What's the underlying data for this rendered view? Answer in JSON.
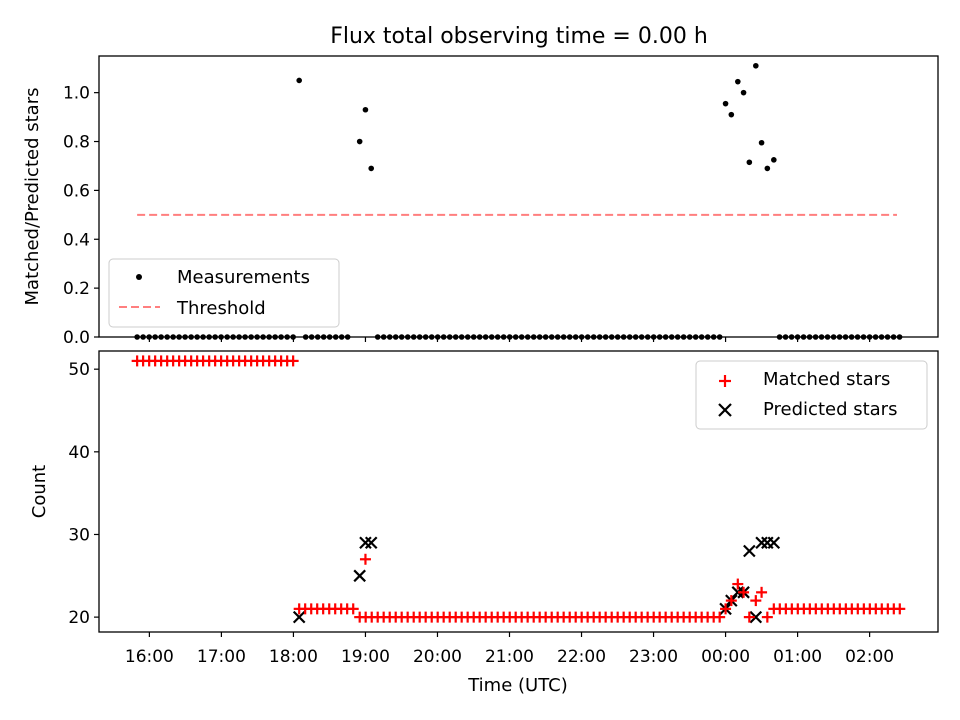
{
  "title": "Flux total observing time = 0.00 h",
  "xlabel": "Time (UTC)",
  "x_tick_labels": [
    "16:00",
    "17:00",
    "18:00",
    "19:00",
    "20:00",
    "21:00",
    "22:00",
    "23:00",
    "00:00",
    "01:00",
    "02:00"
  ],
  "chart_data": [
    {
      "type": "scatter",
      "ylabel": "Matched/Predicted stars",
      "ylim": [
        0,
        1.15
      ],
      "y_ticks": [
        0.0,
        0.2,
        0.4,
        0.6,
        0.8,
        1.0
      ],
      "y_tick_labels": [
        "0.0",
        "0.2",
        "0.4",
        "0.6",
        "0.8",
        "1.0"
      ],
      "legend": {
        "position": "lower-left",
        "entries": [
          {
            "label": "Measurements",
            "style": "dot"
          },
          {
            "label": "Threshold",
            "style": "dashed"
          }
        ]
      },
      "colors": {
        "measurements": "#000000",
        "threshold": "#ff7f7f"
      },
      "threshold": {
        "value": 0.5,
        "x_start": 15.83,
        "x_end": 26.38
      },
      "zero_segments": [
        {
          "start": 15.83,
          "end": 18.0,
          "step": 0.0833
        },
        {
          "start": 18.17,
          "end": 18.83,
          "step": 0.0833
        },
        {
          "start": 19.17,
          "end": 23.92,
          "step": 0.0833
        },
        {
          "start": 24.75,
          "end": 26.42,
          "step": 0.0833
        }
      ],
      "points": [
        {
          "x": 18.08,
          "y": 1.05
        },
        {
          "x": 18.92,
          "y": 0.8
        },
        {
          "x": 19.0,
          "y": 0.93
        },
        {
          "x": 19.08,
          "y": 0.69
        },
        {
          "x": 24.0,
          "y": 0.955
        },
        {
          "x": 24.08,
          "y": 0.91
        },
        {
          "x": 24.17,
          "y": 1.045
        },
        {
          "x": 24.25,
          "y": 1.0
        },
        {
          "x": 24.33,
          "y": 0.715
        },
        {
          "x": 24.42,
          "y": 1.11
        },
        {
          "x": 24.5,
          "y": 0.795
        },
        {
          "x": 24.58,
          "y": 0.69
        },
        {
          "x": 24.67,
          "y": 0.725
        }
      ]
    },
    {
      "type": "scatter",
      "ylabel": "Count",
      "ylim": [
        18.2,
        52.2
      ],
      "y_ticks": [
        20,
        30,
        40,
        50
      ],
      "y_tick_labels": [
        "20",
        "30",
        "40",
        "50"
      ],
      "legend": {
        "position": "top-right",
        "entries": [
          {
            "label": "Matched stars",
            "style": "plus"
          },
          {
            "label": "Predicted stars",
            "style": "cross"
          }
        ]
      },
      "colors": {
        "matched": "#ff0000",
        "predicted": "#000000"
      },
      "matched_segments": [
        {
          "start": 15.83,
          "end": 18.0,
          "step": 0.0833,
          "value": 51
        },
        {
          "start": 18.08,
          "end": 18.83,
          "step": 0.0833,
          "value": 21
        },
        {
          "start": 18.92,
          "end": 23.92,
          "step": 0.0833,
          "value": 20
        },
        {
          "start": 24.67,
          "end": 26.42,
          "step": 0.0833,
          "value": 21
        }
      ],
      "matched_points": [
        {
          "x": 19.0,
          "y": 27
        },
        {
          "x": 24.0,
          "y": 21
        },
        {
          "x": 24.08,
          "y": 22
        },
        {
          "x": 24.17,
          "y": 24
        },
        {
          "x": 24.25,
          "y": 23
        },
        {
          "x": 24.33,
          "y": 20
        },
        {
          "x": 24.42,
          "y": 22
        },
        {
          "x": 24.5,
          "y": 23
        },
        {
          "x": 24.58,
          "y": 20
        }
      ],
      "predicted": [
        {
          "x": 18.08,
          "y": 20
        },
        {
          "x": 18.92,
          "y": 25
        },
        {
          "x": 19.0,
          "y": 29
        },
        {
          "x": 19.08,
          "y": 29
        },
        {
          "x": 24.0,
          "y": 21
        },
        {
          "x": 24.08,
          "y": 22
        },
        {
          "x": 24.17,
          "y": 23
        },
        {
          "x": 24.25,
          "y": 23
        },
        {
          "x": 24.33,
          "y": 28
        },
        {
          "x": 24.42,
          "y": 20
        },
        {
          "x": 24.5,
          "y": 29
        },
        {
          "x": 24.58,
          "y": 29
        },
        {
          "x": 24.67,
          "y": 29
        }
      ]
    }
  ]
}
